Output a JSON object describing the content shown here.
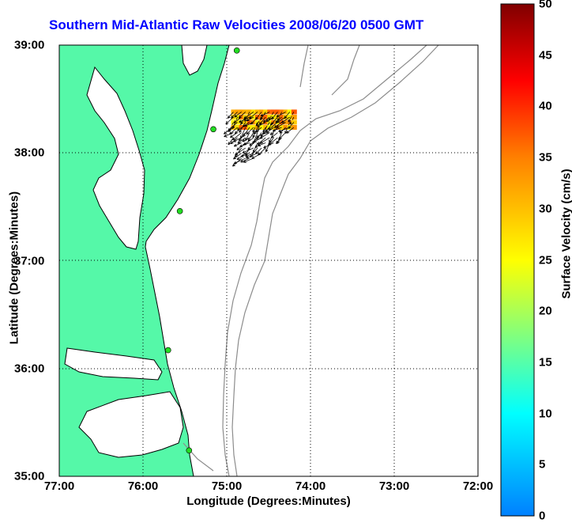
{
  "title": "Southern Mid-Atlantic Raw Velocities 2008/06/20 0500 GMT",
  "xlabel": "Longitude (Degrees:Minutes)",
  "ylabel": "Latitude (Degrees:Minutes)",
  "colorbar_label": "Surface Velocity (cm/s)",
  "colors": {
    "land": "#55f8a8",
    "coast": "#000000",
    "bathymetry": "#8c8c8c",
    "site": "#22dd22",
    "title": "#0000ff"
  },
  "chart_data": {
    "type": "map",
    "xlim": [
      -77,
      -72
    ],
    "ylim": [
      35,
      39
    ],
    "x_ticks": [
      "77:00",
      "76:00",
      "75:00",
      "74:00",
      "73:00",
      "72:00"
    ],
    "y_ticks": [
      "35:00",
      "36:00",
      "37:00",
      "38:00",
      "39:00"
    ],
    "grid": true,
    "colorbar": {
      "min": 0,
      "max": 50,
      "ticks": [
        "0",
        "5",
        "10",
        "15",
        "20",
        "25",
        "30",
        "35",
        "40",
        "45",
        "50"
      ]
    },
    "sites": [
      {
        "lon": -74.88,
        "lat": 38.95
      },
      {
        "lon": -75.16,
        "lat": 38.22
      },
      {
        "lon": -75.56,
        "lat": 37.46
      },
      {
        "lon": -75.7,
        "lat": 36.17
      },
      {
        "lon": -75.45,
        "lat": 35.24
      }
    ],
    "vector_field": {
      "lon_range": [
        -74.92,
        -74.2
      ],
      "lat_range": [
        37.95,
        38.38
      ],
      "speed_range_cm_s": [
        20,
        40
      ]
    }
  }
}
